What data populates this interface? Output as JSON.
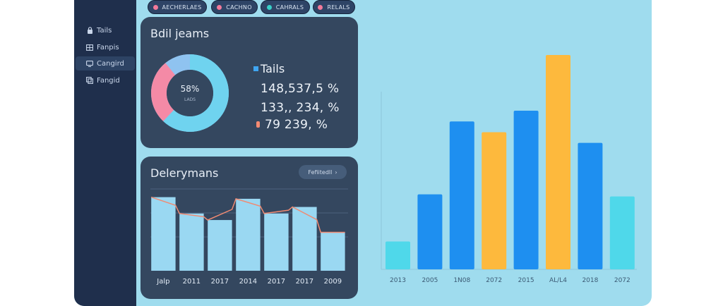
{
  "sidebar": {
    "items": [
      {
        "label": "Tails",
        "icon": "lock-icon"
      },
      {
        "label": "Fanpis",
        "icon": "grid-icon"
      },
      {
        "label": "Cangird",
        "icon": "monitor-icon"
      },
      {
        "label": "Fangid",
        "icon": "layers-icon"
      }
    ]
  },
  "topbar": {
    "pills": [
      {
        "label": "AECHERLAES",
        "dot_color": "#f27a9a"
      },
      {
        "label": "CACHNO",
        "dot_color": "#f27a9a"
      },
      {
        "label": "CAHRALS",
        "dot_color": "#38d0c8"
      },
      {
        "label": "RELALS",
        "dot_color": "#f27a9a"
      }
    ]
  },
  "donut_card": {
    "title": "Bdil jeams",
    "center_value": "58%",
    "center_sub": "LADS",
    "legend_label": "Tails",
    "stats": [
      "148,537,5 %",
      "133,, 234, %",
      "79  239, %"
    ],
    "colors": {
      "blue": "#6fd3ef",
      "pink": "#f48aa6",
      "light_blue": "#8fc3f0"
    },
    "segments": [
      {
        "name": "blue",
        "value": 62
      },
      {
        "name": "pink",
        "value": 27
      },
      {
        "name": "light_blue",
        "value": 11
      }
    ]
  },
  "area_card": {
    "title": "Delerymans",
    "filter_label": "Fefiitedll",
    "filter_icon": "chevron-right-icon"
  },
  "chart_data": [
    {
      "type": "area",
      "categories": [
        "Jalp",
        "2011",
        "2017",
        "2014",
        "2017",
        "2017",
        "2009"
      ],
      "values": [
        90,
        70,
        62,
        88,
        70,
        78,
        47
      ],
      "ylim": [
        0,
        100
      ],
      "grid": true,
      "fill_color": "#9ad8f2",
      "line_color": "#f08a72"
    },
    {
      "type": "bar",
      "categories": [
        "2013",
        "2005",
        "1N08",
        "2072",
        "2015",
        "AL/L4",
        "2018",
        "2072"
      ],
      "series": [
        {
          "values": [
            13,
            35,
            69,
            64,
            74,
            100,
            59,
            34
          ]
        }
      ],
      "colors": [
        "#4fd8ea",
        "#1e8ff0",
        "#1e8ff0",
        "#fdb93d",
        "#1e8ff0",
        "#fdb93d",
        "#1e8ff0",
        "#4fd8ea"
      ],
      "ylim": [
        0,
        100
      ]
    }
  ]
}
